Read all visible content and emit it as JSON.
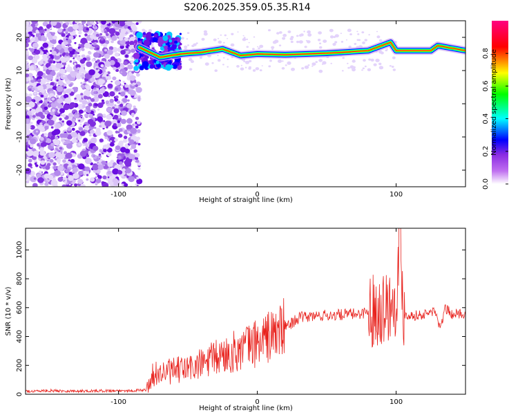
{
  "figure": {
    "title": "S206.2025.359.05.35.R14"
  },
  "chart_data": [
    {
      "type": "heatmap",
      "title": "S206.2025.359.05.35.R14",
      "xlabel": "Height of straight line (km)",
      "ylabel": "Frequency (Hz)",
      "xlim": [
        -167,
        150
      ],
      "ylim": [
        -25,
        25
      ],
      "x_ticks": [
        -100,
        0,
        100
      ],
      "y_ticks": [
        -20,
        -10,
        0,
        10,
        20
      ],
      "colorbar": {
        "label": "Normalized spectral amplitude",
        "range": [
          0.0,
          1.0
        ],
        "ticks": [
          0.0,
          0.2,
          0.4,
          0.6,
          0.8
        ],
        "colormap": [
          "#ffffff",
          "#a020f0",
          "#0000ff",
          "#00ffff",
          "#00ff00",
          "#ffff00",
          "#ff0000",
          "#ff00aa"
        ]
      },
      "features": {
        "noise_region_x": [
          -167,
          -88
        ],
        "burst_region_x": [
          -88,
          -55
        ],
        "signal_line": [
          {
            "x": -85,
            "freq": 17
          },
          {
            "x": -70,
            "freq": 14
          },
          {
            "x": -55,
            "freq": 15
          },
          {
            "x": -40,
            "freq": 15.5
          },
          {
            "x": -25,
            "freq": 16.5
          },
          {
            "x": -12,
            "freq": 14.5
          },
          {
            "x": 0,
            "freq": 15
          },
          {
            "x": 20,
            "freq": 14.8
          },
          {
            "x": 50,
            "freq": 15.2
          },
          {
            "x": 80,
            "freq": 16
          },
          {
            "x": 96,
            "freq": 18.5
          },
          {
            "x": 100,
            "freq": 16
          },
          {
            "x": 125,
            "freq": 16
          },
          {
            "x": 130,
            "freq": 17.5
          },
          {
            "x": 150,
            "freq": 16
          }
        ]
      }
    },
    {
      "type": "line",
      "xlabel": "Height of straight line (km)",
      "ylabel": "SNR (10 * v/v)",
      "xlim": [
        -167,
        150
      ],
      "ylim": [
        0,
        1150
      ],
      "x_ticks": [
        -100,
        0,
        100
      ],
      "y_ticks": [
        0,
        200,
        400,
        600,
        800,
        1000
      ],
      "color": "#e8211c",
      "series": [
        {
          "x": [
            -167,
            -150,
            -130,
            -110,
            -90,
            -80,
            -75,
            -60,
            -45,
            -30,
            -15,
            0,
            15,
            30,
            45,
            60,
            75,
            85,
            95,
            100,
            103,
            105,
            110,
            120,
            128,
            132,
            135,
            140,
            150
          ],
          "values": [
            20,
            25,
            22,
            24,
            25,
            30,
            140,
            160,
            190,
            250,
            300,
            360,
            430,
            530,
            545,
            550,
            560,
            590,
            620,
            650,
            1150,
            560,
            545,
            550,
            580,
            440,
            600,
            555,
            560
          ]
        }
      ]
    }
  ]
}
